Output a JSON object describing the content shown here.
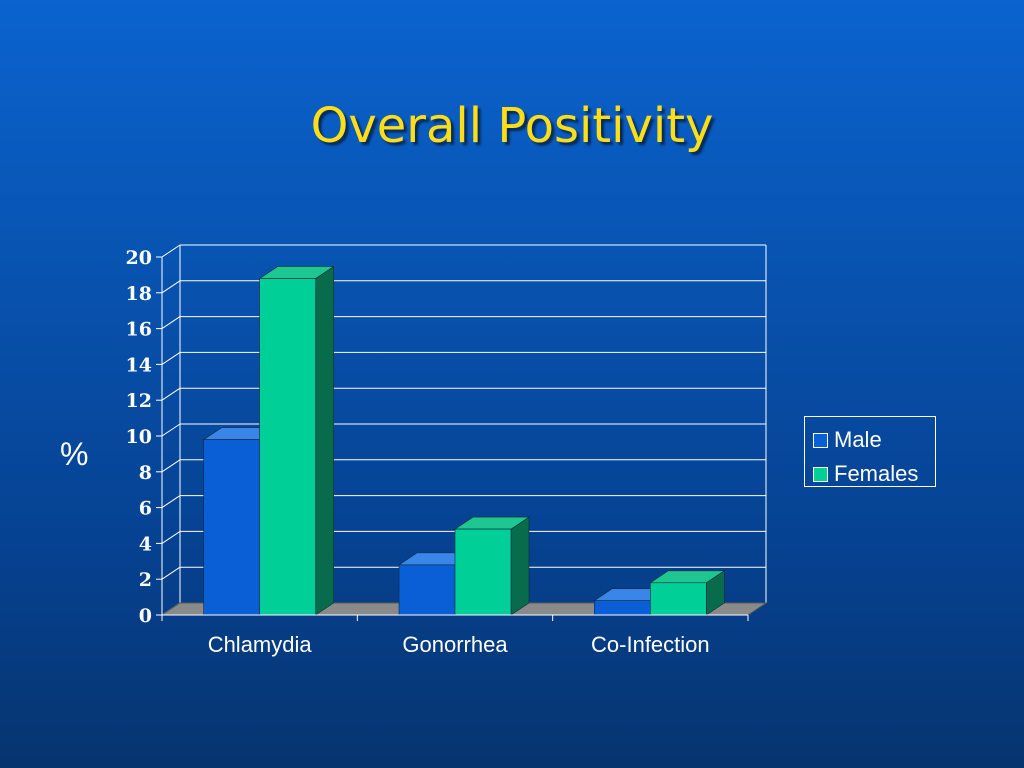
{
  "slide": {
    "title": "Overall Positivity"
  },
  "colors": {
    "title": "#ffde17",
    "male_front": "#0a5fd6",
    "male_top": "#3a86e8",
    "male_side": "#06358a",
    "female_front": "#00cf98",
    "female_top": "#1ec78f",
    "female_side": "#086b4c",
    "floor": "#8a8a8a",
    "grid": "#ffffff"
  },
  "chart_data": {
    "type": "bar",
    "title": "",
    "ylabel": "%",
    "xlabel": "",
    "categories": [
      "Chlamydia",
      "Gonorrhea",
      "Co-Infection"
    ],
    "series": [
      {
        "name": "Male",
        "values": [
          9.8,
          2.8,
          0.8
        ]
      },
      {
        "name": "Females",
        "values": [
          18.8,
          4.8,
          1.8
        ]
      }
    ],
    "ylim": [
      0,
      20
    ],
    "yticks": [
      "0",
      "2",
      "4",
      "6",
      "8",
      "10",
      "12",
      "14",
      "16",
      "18",
      "20"
    ],
    "grid": true,
    "legend_position": "right",
    "style": "3d-clustered-column"
  }
}
